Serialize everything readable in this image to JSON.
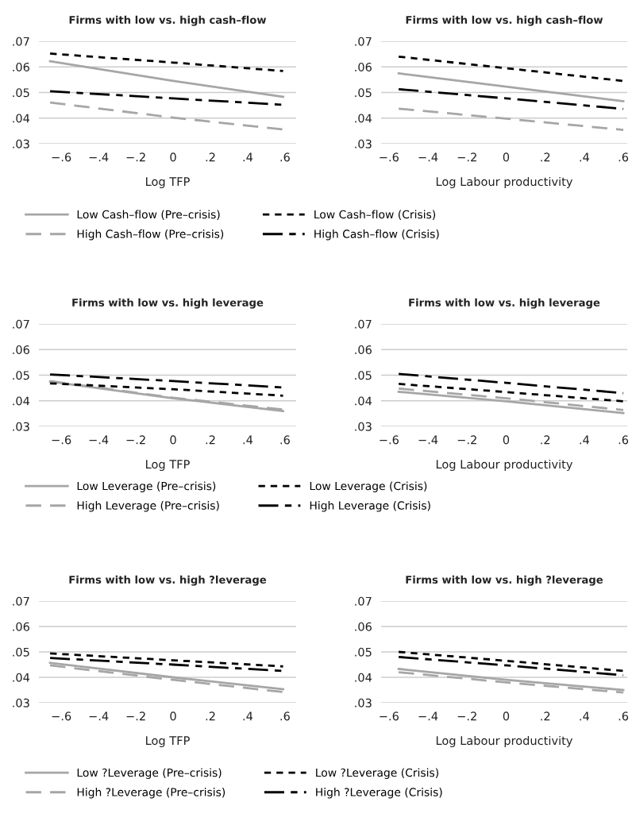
{
  "chart_data": [
    {
      "type": "line",
      "title": "Firms with low vs. high cash–flow",
      "xlabel": "Log TFP",
      "x": [
        -0.66,
        0,
        0.59
      ],
      "xlim": [
        -0.72,
        0.66
      ],
      "xticks": [
        {
          "value": -0.6,
          "label": "−.6"
        },
        {
          "value": -0.4,
          "label": "−.4"
        },
        {
          "value": -0.2,
          "label": "−.2"
        },
        {
          "value": 0,
          "label": "0"
        },
        {
          "value": 0.2,
          "label": ".2"
        },
        {
          "value": 0.4,
          "label": ".4"
        },
        {
          "value": 0.6,
          "label": ".6"
        }
      ],
      "ylim": [
        0.03,
        0.07
      ],
      "yticks": [
        {
          "value": 0.03,
          "label": ".03"
        },
        {
          "value": 0.04,
          "label": ".04"
        },
        {
          "value": 0.05,
          "label": ".05"
        },
        {
          "value": 0.06,
          "label": ".06"
        },
        {
          "value": 0.07,
          "label": ".07"
        }
      ],
      "grid": "y",
      "legend": "bottom",
      "series": [
        {
          "name": "Low Cash–flow (Pre–crisis)",
          "color": "#a6a6a6",
          "line_style": "solid",
          "values": [
            0.0622,
            0.0545,
            0.0483
          ]
        },
        {
          "name": "High Cash–flow (Pre–crisis)",
          "color": "#a6a6a6",
          "line_style": "dashed",
          "values": [
            0.0461,
            0.0402,
            0.0356
          ]
        },
        {
          "name": "Low Cash–flow (Crisis)",
          "color": "#000000",
          "line_style": "dotted",
          "values": [
            0.0652,
            0.0617,
            0.0584
          ]
        },
        {
          "name": "High Cash–flow (Crisis)",
          "color": "#000000",
          "line_style": "dashdot",
          "values": [
            0.0505,
            0.0477,
            0.0452
          ]
        }
      ]
    },
    {
      "type": "line",
      "title": "Firms with low vs. high cash–flow",
      "xlabel": "Log Labour productivity",
      "x": [
        -0.55,
        0,
        0.6
      ],
      "xlim": [
        -0.64,
        0.62
      ],
      "xticks": [
        {
          "value": -0.6,
          "label": "−.6"
        },
        {
          "value": -0.4,
          "label": "−.4"
        },
        {
          "value": -0.2,
          "label": "−.2"
        },
        {
          "value": 0,
          "label": "0"
        },
        {
          "value": 0.2,
          "label": ".2"
        },
        {
          "value": 0.4,
          "label": ".4"
        },
        {
          "value": 0.6,
          "label": ".6"
        }
      ],
      "ylim": [
        0.03,
        0.07
      ],
      "yticks": [
        {
          "value": 0.03,
          "label": ".03"
        },
        {
          "value": 0.04,
          "label": ".04"
        },
        {
          "value": 0.05,
          "label": ".05"
        },
        {
          "value": 0.06,
          "label": ".06"
        },
        {
          "value": 0.07,
          "label": ".07"
        }
      ],
      "grid": "y",
      "series": [
        {
          "color": "#a6a6a6",
          "line_style": "solid",
          "values": [
            0.0575,
            0.0523,
            0.0466
          ]
        },
        {
          "color": "#a6a6a6",
          "line_style": "dashed",
          "values": [
            0.0437,
            0.0398,
            0.0354
          ]
        },
        {
          "color": "#000000",
          "line_style": "dotted",
          "values": [
            0.064,
            0.0595,
            0.0545
          ]
        },
        {
          "color": "#000000",
          "line_style": "dashdot",
          "values": [
            0.0513,
            0.0477,
            0.0436
          ]
        }
      ]
    },
    {
      "type": "line",
      "title": "Firms with low vs. high leverage",
      "xlabel": "Log TFP",
      "x": [
        -0.66,
        0,
        0.59
      ],
      "xlim": [
        -0.72,
        0.66
      ],
      "xticks": [
        {
          "value": -0.6,
          "label": "−.6"
        },
        {
          "value": -0.4,
          "label": "−.4"
        },
        {
          "value": -0.2,
          "label": "−.2"
        },
        {
          "value": 0,
          "label": "0"
        },
        {
          "value": 0.2,
          "label": ".2"
        },
        {
          "value": 0.4,
          "label": ".4"
        },
        {
          "value": 0.6,
          "label": ".6"
        }
      ],
      "ylim": [
        0.03,
        0.07
      ],
      "yticks": [
        {
          "value": 0.03,
          "label": ".03"
        },
        {
          "value": 0.04,
          "label": ".04"
        },
        {
          "value": 0.05,
          "label": ".05"
        },
        {
          "value": 0.06,
          "label": ".06"
        },
        {
          "value": 0.07,
          "label": ".07"
        }
      ],
      "grid": "y",
      "legend": "bottom",
      "series": [
        {
          "name": "Low Leverage (Pre–crisis)",
          "color": "#a6a6a6",
          "line_style": "solid",
          "values": [
            0.0475,
            0.041,
            0.036
          ]
        },
        {
          "name": "High Leverage (Pre–crisis)",
          "color": "#a6a6a6",
          "line_style": "dashed",
          "values": [
            0.0477,
            0.0412,
            0.0366
          ]
        },
        {
          "name": "Low Leverage (Crisis)",
          "color": "#000000",
          "line_style": "dotted",
          "values": [
            0.0468,
            0.0445,
            0.042
          ]
        },
        {
          "name": "High Leverage (Crisis)",
          "color": "#000000",
          "line_style": "dashdot",
          "values": [
            0.0503,
            0.0477,
            0.0452
          ]
        }
      ]
    },
    {
      "type": "line",
      "title": "Firms with low vs. high leverage",
      "xlabel": "Log Labour productivity",
      "x": [
        -0.55,
        0,
        0.6
      ],
      "xlim": [
        -0.64,
        0.62
      ],
      "xticks": [
        {
          "value": -0.6,
          "label": "−.6"
        },
        {
          "value": -0.4,
          "label": "−.4"
        },
        {
          "value": -0.2,
          "label": "−.2"
        },
        {
          "value": 0,
          "label": "0"
        },
        {
          "value": 0.2,
          "label": ".2"
        },
        {
          "value": 0.4,
          "label": ".4"
        },
        {
          "value": 0.6,
          "label": ".6"
        }
      ],
      "ylim": [
        0.03,
        0.07
      ],
      "yticks": [
        {
          "value": 0.03,
          "label": ".03"
        },
        {
          "value": 0.04,
          "label": ".04"
        },
        {
          "value": 0.05,
          "label": ".05"
        },
        {
          "value": 0.06,
          "label": ".06"
        },
        {
          "value": 0.07,
          "label": ".07"
        }
      ],
      "grid": "y",
      "series": [
        {
          "color": "#a6a6a6",
          "line_style": "solid",
          "values": [
            0.0435,
            0.0398,
            0.0352
          ]
        },
        {
          "color": "#a6a6a6",
          "line_style": "dashed",
          "values": [
            0.0448,
            0.041,
            0.0364
          ]
        },
        {
          "color": "#000000",
          "line_style": "dotted",
          "values": [
            0.0466,
            0.0434,
            0.0398
          ]
        },
        {
          "color": "#000000",
          "line_style": "dashdot",
          "values": [
            0.0505,
            0.047,
            0.043
          ]
        }
      ]
    },
    {
      "type": "line",
      "title": "Firms with low vs. high ?leverage",
      "xlabel": "Log TFP",
      "x": [
        -0.66,
        0,
        0.59
      ],
      "xlim": [
        -0.72,
        0.66
      ],
      "xticks": [
        {
          "value": -0.6,
          "label": "−.6"
        },
        {
          "value": -0.4,
          "label": "−.4"
        },
        {
          "value": -0.2,
          "label": "−.2"
        },
        {
          "value": 0,
          "label": "0"
        },
        {
          "value": 0.2,
          "label": ".2"
        },
        {
          "value": 0.4,
          "label": ".4"
        },
        {
          "value": 0.6,
          "label": ".6"
        }
      ],
      "ylim": [
        0.03,
        0.07
      ],
      "yticks": [
        {
          "value": 0.03,
          "label": ".03"
        },
        {
          "value": 0.04,
          "label": ".04"
        },
        {
          "value": 0.05,
          "label": ".05"
        },
        {
          "value": 0.06,
          "label": ".06"
        },
        {
          "value": 0.07,
          "label": ".07"
        }
      ],
      "grid": "y",
      "legend": "bottom",
      "series": [
        {
          "name": "Low ?Leverage (Pre–crisis)",
          "color": "#a6a6a6",
          "line_style": "solid",
          "values": [
            0.0457,
            0.04,
            0.0353
          ]
        },
        {
          "name": "High ?Leverage (Pre–crisis)",
          "color": "#a6a6a6",
          "line_style": "dashed",
          "values": [
            0.0447,
            0.039,
            0.0342
          ]
        },
        {
          "name": "Low ?Leverage (Crisis)",
          "color": "#000000",
          "line_style": "dotted",
          "values": [
            0.0494,
            0.0467,
            0.0443
          ]
        },
        {
          "name": "High ?Leverage (Crisis)",
          "color": "#000000",
          "line_style": "dashdot",
          "values": [
            0.0476,
            0.045,
            0.0425
          ]
        }
      ]
    },
    {
      "type": "line",
      "title": "Firms with low vs. high ?leverage",
      "xlabel": "Log Labour productivity",
      "x": [
        -0.55,
        0,
        0.6
      ],
      "xlim": [
        -0.64,
        0.62
      ],
      "xticks": [
        {
          "value": -0.6,
          "label": "−.6"
        },
        {
          "value": -0.4,
          "label": "−.4"
        },
        {
          "value": -0.2,
          "label": "−.2"
        },
        {
          "value": 0,
          "label": "0"
        },
        {
          "value": 0.2,
          "label": ".2"
        },
        {
          "value": 0.4,
          "label": ".4"
        },
        {
          "value": 0.6,
          "label": ".6"
        }
      ],
      "ylim": [
        0.03,
        0.07
      ],
      "yticks": [
        {
          "value": 0.03,
          "label": ".03"
        },
        {
          "value": 0.04,
          "label": ".04"
        },
        {
          "value": 0.05,
          "label": ".05"
        },
        {
          "value": 0.06,
          "label": ".06"
        },
        {
          "value": 0.07,
          "label": ".07"
        }
      ],
      "grid": "y",
      "series": [
        {
          "color": "#a6a6a6",
          "line_style": "solid",
          "values": [
            0.0433,
            0.039,
            0.035
          ]
        },
        {
          "color": "#a6a6a6",
          "line_style": "dashed",
          "values": [
            0.042,
            0.038,
            0.034
          ]
        },
        {
          "color": "#000000",
          "line_style": "dotted",
          "values": [
            0.05,
            0.0465,
            0.0425
          ]
        },
        {
          "color": "#000000",
          "line_style": "dashdot",
          "values": [
            0.048,
            0.0447,
            0.0408
          ]
        }
      ]
    }
  ]
}
